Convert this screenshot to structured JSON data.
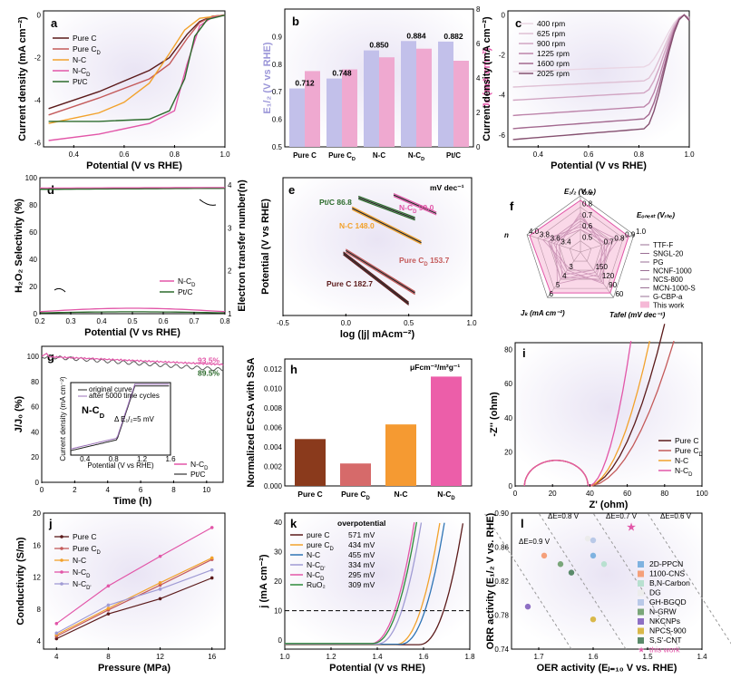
{
  "panels": {
    "a": {
      "letter": "a",
      "xlabel": "Potential (V vs RHE)",
      "ylabel": "Current density (mA cm⁻²)",
      "xticks": [
        "0.4",
        "0.6",
        "0.8",
        "1.0"
      ],
      "yticks": [
        "0",
        "-2",
        "-4",
        "-6"
      ],
      "series": [
        {
          "name": "Pure C",
          "sub": "",
          "color": "#5b1a1a",
          "pts": [
            [
              0.3,
              -4.4
            ],
            [
              0.5,
              -3.6
            ],
            [
              0.7,
              -2.6
            ],
            [
              0.78,
              -2.0
            ],
            [
              0.85,
              -0.9
            ],
            [
              0.9,
              -0.3
            ],
            [
              0.95,
              -0.05
            ],
            [
              1.0,
              0
            ]
          ]
        },
        {
          "name": "Pure C",
          "sub": "D",
          "color": "#c45a5a",
          "pts": [
            [
              0.3,
              -4.7
            ],
            [
              0.5,
              -3.9
            ],
            [
              0.7,
              -3.0
            ],
            [
              0.78,
              -2.3
            ],
            [
              0.85,
              -1.1
            ],
            [
              0.9,
              -0.35
            ],
            [
              0.95,
              -0.05
            ],
            [
              1.0,
              0
            ]
          ]
        },
        {
          "name": "N-C",
          "sub": "",
          "color": "#f2a22c",
          "pts": [
            [
              0.3,
              -5.1
            ],
            [
              0.5,
              -4.6
            ],
            [
              0.6,
              -4.1
            ],
            [
              0.7,
              -3.2
            ],
            [
              0.78,
              -1.8
            ],
            [
              0.84,
              -0.7
            ],
            [
              0.9,
              -0.15
            ],
            [
              1.0,
              0
            ]
          ]
        },
        {
          "name": "N-C",
          "sub": "D",
          "color": "#e256a8",
          "pts": [
            [
              0.3,
              -5.9
            ],
            [
              0.5,
              -5.6
            ],
            [
              0.7,
              -5.1
            ],
            [
              0.8,
              -4.5
            ],
            [
              0.85,
              -2.3
            ],
            [
              0.9,
              -0.5
            ],
            [
              0.95,
              -0.1
            ],
            [
              1.0,
              0
            ]
          ]
        },
        {
          "name": "Pt/C",
          "sub": "",
          "color": "#2c6b2c",
          "pts": [
            [
              0.3,
              -5.0
            ],
            [
              0.5,
              -5.0
            ],
            [
              0.7,
              -4.9
            ],
            [
              0.78,
              -4.5
            ],
            [
              0.84,
              -3.0
            ],
            [
              0.88,
              -1.0
            ],
            [
              0.93,
              -0.2
            ],
            [
              1.0,
              0
            ]
          ]
        }
      ]
    },
    "b": {
      "letter": "b",
      "xlabel": "",
      "ylabel_left": "E₁/₂ (V vs RHE)",
      "ylabel_right": "Jₖ (mA cm⁻²)",
      "categories": [
        "Pure C",
        "Pure CD",
        "N-C",
        "N-CD",
        "Pt/C"
      ],
      "cat_sub": [
        "",
        "D",
        "",
        "D",
        ""
      ],
      "e_values": [
        0.712,
        0.748,
        0.85,
        0.884,
        0.882
      ],
      "e_labels": [
        "0.712",
        "0.748",
        "0.850",
        "0.884",
        "0.882"
      ],
      "j_values": [
        4.4,
        4.5,
        5.2,
        5.7,
        5.0
      ],
      "yticks_left": [
        "0.5",
        "0.6",
        "0.7",
        "0.8",
        "0.9"
      ],
      "yticks_right": [
        "0",
        "2",
        "4",
        "6",
        "8"
      ],
      "color_e": "#c2c0ea",
      "color_j": "#efa9d0"
    },
    "c": {
      "letter": "c",
      "xlabel": "Potential (V vs RHE)",
      "ylabel": "Current density (mA cm⁻²)",
      "xticks": [
        "0.4",
        "0.6",
        "0.8",
        "1.0"
      ],
      "yticks": [
        "0",
        "-2",
        "-4",
        "-6"
      ],
      "legend": [
        "400 rpm",
        "625 rpm",
        "900 rpm",
        "1225 rpm",
        "1600 rpm",
        "2025 rpm"
      ],
      "plateaus": [
        -2.6,
        -3.3,
        -3.9,
        -4.6,
        -5.2,
        -5.7
      ],
      "colors": [
        "#ead6e4",
        "#dfc0d4",
        "#d1a4c2",
        "#bd84aa",
        "#a3688f",
        "#855070"
      ]
    },
    "d": {
      "letter": "d",
      "xlabel": "Potential (V vs RHE)",
      "ylabel_left": "H₂O₂ Selectivity (%)",
      "ylabel_right": "Electron transfer number(n)",
      "xticks": [
        "0.2",
        "0.3",
        "0.4",
        "0.5",
        "0.6",
        "0.7",
        "0.8"
      ],
      "yticks_left": [
        "0",
        "20",
        "40",
        "60",
        "80",
        "100"
      ],
      "yticks_right": [
        "1",
        "2",
        "3",
        "4"
      ],
      "series": [
        {
          "name": "N-C",
          "sub": "D",
          "color": "#e256a8"
        },
        {
          "name": "Pt/C",
          "sub": "",
          "color": "#2c6b2c"
        }
      ]
    },
    "e": {
      "letter": "e",
      "xlabel": "log (|j| mAcm⁻²)",
      "ylabel": "Potential (V vs RHE)",
      "unit": "mV dec⁻¹",
      "xticks": [
        "-0.5",
        "0.0",
        "0.5",
        "1.0"
      ],
      "lines": [
        {
          "label": "Pt/C 86.8",
          "color": "#2c6b2c",
          "x1": 0.1,
          "x2": 0.55,
          "y1": 0.925,
          "y2": 0.885
        },
        {
          "label": "N-CD 99.0",
          "color": "#e256a8",
          "x1": 0.38,
          "x2": 0.72,
          "y1": 0.93,
          "y2": 0.895
        },
        {
          "label": "N-C 148.0",
          "color": "#f2a22c",
          "x1": 0.05,
          "x2": 0.6,
          "y1": 0.905,
          "y2": 0.84
        },
        {
          "label": "Pure CD 153.7",
          "color": "#c45a5a",
          "x1": 0.0,
          "x2": 0.55,
          "y1": 0.825,
          "y2": 0.745
        },
        {
          "label": "Pure C 182.7",
          "color": "#5b1a1a",
          "x1": -0.02,
          "x2": 0.5,
          "y1": 0.82,
          "y2": 0.725
        }
      ]
    },
    "f": {
      "letter": "f",
      "axes": [
        "E₁/₂ (Vᵣₕₑ)",
        "Eₒₙₑₛₜ (Vᵣₕₑ)",
        "Tafel (mV dec⁻¹)",
        "Jₖ (mA cm⁻²)",
        "n"
      ],
      "ring_labels": [
        [
          "0.9",
          "0.8",
          "0.7",
          "0.6",
          "0.5"
        ],
        [
          "1.0",
          "0.9",
          "0.8",
          "0.7"
        ],
        [
          "60",
          "90",
          "120",
          "150"
        ],
        [
          "6",
          "5",
          "4",
          "3"
        ],
        [
          "4.0",
          "3.8",
          "3.6",
          "3.4"
        ]
      ],
      "legend": [
        "TTF-F",
        "SNGL-20",
        "PG",
        "NCNF-1000",
        "NCS-800",
        "MCN-1000-S",
        "G-CBP-a",
        "This work"
      ],
      "legend_color": "#9a6f94",
      "this_color": "#f5b8d6"
    },
    "g": {
      "letter": "g",
      "xlabel": "Time (h)",
      "ylabel": "J/J₀ (%)",
      "xticks": [
        "0",
        "2",
        "4",
        "6",
        "8",
        "10"
      ],
      "yticks": [
        "0",
        "20",
        "40",
        "60",
        "80",
        "100"
      ],
      "p1": "93.5%",
      "p2": "89.5%",
      "series": [
        {
          "name": "N-C",
          "sub": "D",
          "color": "#e256a8"
        },
        {
          "name": "Pt/C",
          "sub": "",
          "color": "#5a5a5a"
        }
      ],
      "inset": {
        "title": "N-C",
        "title_sub": "D",
        "legend": [
          "original curve",
          "after 5000 time cycles"
        ],
        "delta": "Δ E₁/₂=5 mV",
        "xlabel": "Potential (V vs RHE)",
        "ylabel": "Current density (mA cm⁻²)",
        "xticks": [
          "0.4",
          "0.8",
          "1.2",
          "1.6"
        ]
      }
    },
    "h": {
      "letter": "h",
      "ylabel": "Normalized ECSA with SSA",
      "unit": "μFcm⁻²/m²g⁻¹",
      "yticks": [
        "0.000",
        "0.002",
        "0.004",
        "0.006",
        "0.008",
        "0.010",
        "0.012"
      ],
      "categories": [
        "Pure C",
        "Pure CD",
        "N-C",
        "N-CD"
      ],
      "cat_sub": [
        "",
        "D",
        "",
        "D"
      ],
      "values": [
        0.0048,
        0.0023,
        0.0063,
        0.0112
      ],
      "colors": [
        "#8a3a1c",
        "#d66a6a",
        "#f59a32",
        "#ec5ea9"
      ]
    },
    "i": {
      "letter": "i",
      "xlabel": "Z' (ohm)",
      "ylabel": "-Z'' (ohm)",
      "xticks": [
        "0",
        "20",
        "40",
        "60",
        "80",
        "100"
      ],
      "yticks": [
        "0",
        "20",
        "40",
        "60",
        "80"
      ],
      "series": [
        {
          "name": "Pure C",
          "sub": "",
          "color": "#5b1a1a"
        },
        {
          "name": "Pure C",
          "sub": "D",
          "color": "#c45a5a"
        },
        {
          "name": "N-C",
          "sub": "",
          "color": "#f2a22c"
        },
        {
          "name": "N-C",
          "sub": "D",
          "color": "#e256a8"
        }
      ]
    },
    "j": {
      "letter": "j",
      "xlabel": "Pressure (MPa)",
      "ylabel": "Conductivity (S/m)",
      "xticks": [
        "4",
        "8",
        "12",
        "16"
      ],
      "yticks": [
        "4",
        "8",
        "12",
        "16",
        "20"
      ],
      "x": [
        4,
        8,
        12,
        16
      ],
      "series": [
        {
          "name": "Pure C",
          "sub": "",
          "color": "#5b1a1a",
          "values": [
            4.3,
            7.4,
            9.3,
            11.9
          ]
        },
        {
          "name": "Pure C",
          "sub": "D",
          "color": "#c45a5a",
          "values": [
            4.6,
            7.9,
            11.0,
            14.2
          ]
        },
        {
          "name": "N-C",
          "sub": "",
          "color": "#f2a22c",
          "values": [
            4.8,
            8.1,
            11.3,
            14.4
          ]
        },
        {
          "name": "N-C",
          "sub": "D",
          "color": "#e256a8",
          "values": [
            6.2,
            10.9,
            14.6,
            18.2
          ]
        },
        {
          "name": "N-C",
          "sub": "D'",
          "color": "#a09bd4",
          "values": [
            5.0,
            8.5,
            10.5,
            12.9
          ]
        }
      ]
    },
    "k": {
      "letter": "k",
      "xlabel": "Potential (V vs RHE)",
      "ylabel": "j (mA cm⁻²)",
      "header": "overpotential",
      "xticks": [
        "1.0",
        "1.2",
        "1.4",
        "1.6",
        "1.8"
      ],
      "yticks": [
        "0",
        "10",
        "20",
        "30",
        "40"
      ],
      "series": [
        {
          "name": "pure C",
          "value": "571 mV",
          "color": "#5b1a1a",
          "onset": 1.68
        },
        {
          "name": "pure C",
          "sub": "D",
          "value": "434 mV",
          "color": "#f2a22c",
          "onset": 1.58
        },
        {
          "name": "N-C",
          "value": "455 mV",
          "color": "#2e74b5",
          "onset": 1.6
        },
        {
          "name": "N-C",
          "sub": "D'",
          "value": "334 mV",
          "color": "#a09bd4",
          "onset": 1.5
        },
        {
          "name": "N-C",
          "sub": "D",
          "value": "295 mV",
          "color": "#e256a8",
          "onset": 1.47
        },
        {
          "name": "RuO₂",
          "value": "309 mV",
          "color": "#2c8a3a",
          "onset": 1.48
        }
      ]
    },
    "l": {
      "letter": "l",
      "xlabel": "OER activity (Eⱼ₌₁₀ V vs. RHE)",
      "ylabel": "ORR activity (E₁/₂ V vs. RHE)",
      "xticks": [
        "1.7",
        "1.6",
        "1.5",
        "1.4"
      ],
      "yticks": [
        "0.74",
        "0.78",
        "0.82",
        "0.86",
        "0.90"
      ],
      "diag_labels": [
        "ΔE=0.9 V",
        "ΔE=0.8 V",
        "ΔE=0.7 V",
        "ΔE=0.6 V"
      ],
      "points": [
        {
          "name": "2D-PPCN",
          "color": "#7fb2e0",
          "x": 1.6,
          "y": 0.85
        },
        {
          "name": "1100-CNS",
          "color": "#f5a07a",
          "x": 1.69,
          "y": 0.85
        },
        {
          "name": "B,N-Carbon",
          "color": "#b8e0d0",
          "x": 1.58,
          "y": 0.84
        },
        {
          "name": "DG",
          "color": "#ececec",
          "x": 1.61,
          "y": 0.87
        },
        {
          "name": "GH-BGQD",
          "color": "#b9c9e8",
          "x": 1.6,
          "y": 0.868
        },
        {
          "name": "N-GRW",
          "color": "#7aa67a",
          "x": 1.66,
          "y": 0.84
        },
        {
          "name": "NKCNPs",
          "color": "#8e6fc4",
          "x": 1.72,
          "y": 0.79
        },
        {
          "name": "NPCS-900",
          "color": "#d9b84a",
          "x": 1.6,
          "y": 0.775
        },
        {
          "name": "S,S'-CNT",
          "color": "#5a8a6a",
          "x": 1.64,
          "y": 0.83
        },
        {
          "name": "this work",
          "color": "#e256a8",
          "x": 1.53,
          "y": 0.884
        }
      ]
    }
  }
}
